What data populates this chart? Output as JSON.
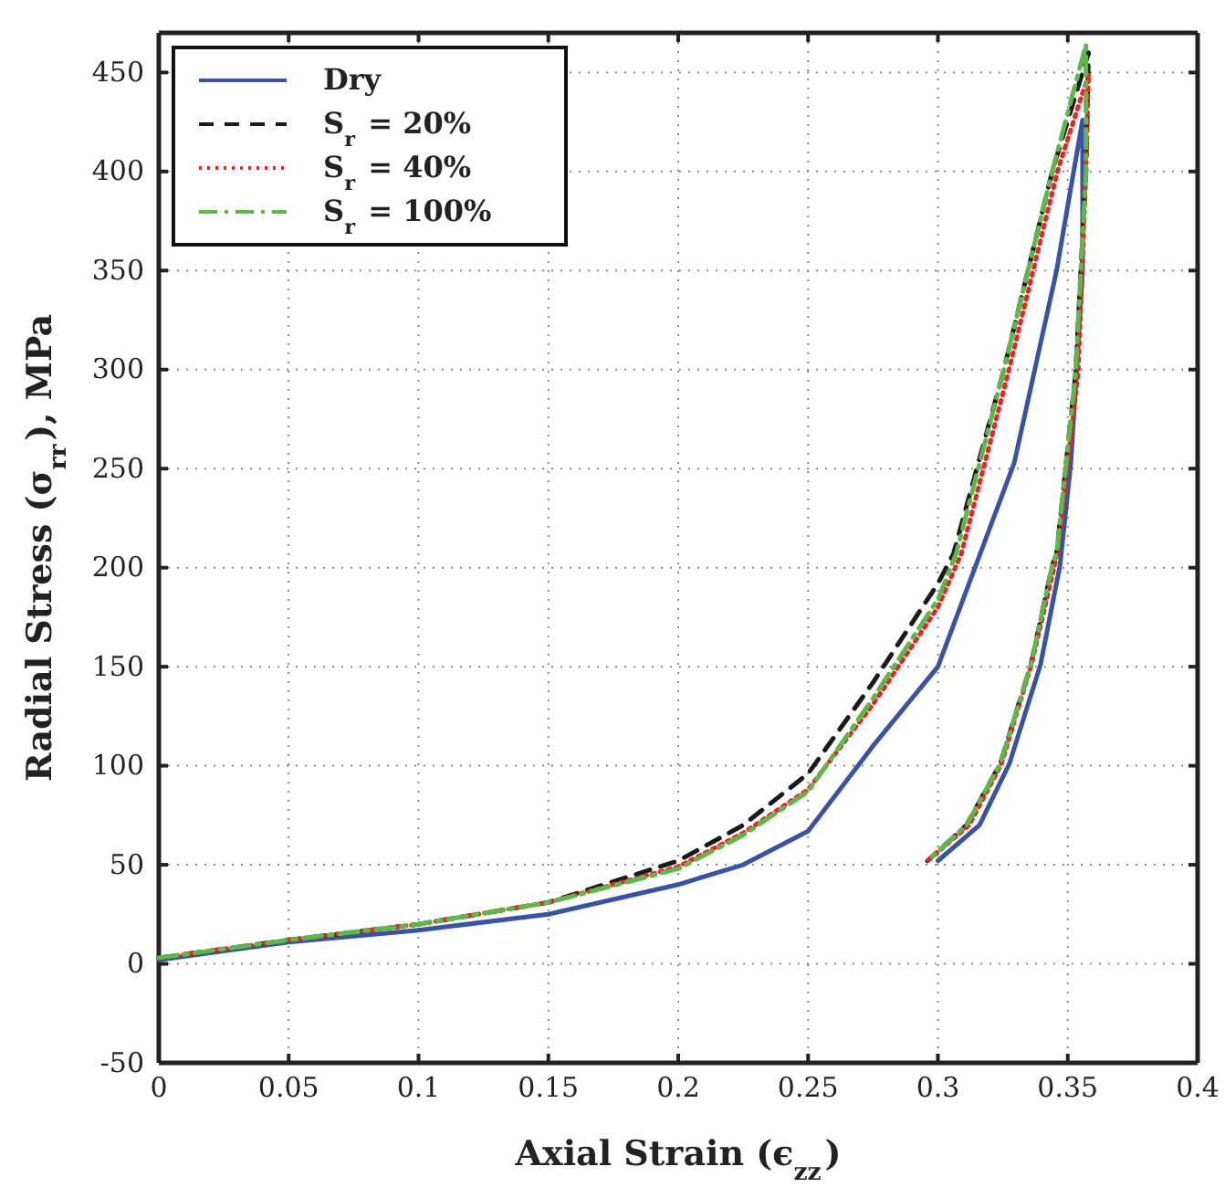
{
  "chart_data": {
    "type": "line",
    "xlabel": "Axial Strain (ϵ$_{zz}$)",
    "ylabel": "Radial Stress (σ$_{rr}$), MPa",
    "xlim": [
      0,
      0.4
    ],
    "ylim": [
      -50,
      470
    ],
    "xticks": [
      0,
      0.05,
      0.1,
      0.15,
      0.2,
      0.25,
      0.3,
      0.35,
      0.4
    ],
    "yticks": [
      -50,
      0,
      50,
      100,
      150,
      200,
      250,
      300,
      350,
      400,
      450
    ],
    "grid": true,
    "legend": "top left",
    "marker": "none",
    "series": [
      {
        "name": "Dry",
        "color": "#3953a4",
        "line_style": "solid",
        "x": [
          0,
          0.05,
          0.1,
          0.15,
          0.2,
          0.225,
          0.25,
          0.275,
          0.3,
          0.3294,
          0.3457,
          0.3557,
          0.3557,
          0.3512,
          0.347,
          0.3395,
          0.3275,
          0.316,
          0.3
        ],
        "values": [
          2,
          11,
          17,
          25,
          40,
          50,
          67,
          110,
          150,
          253,
          350,
          426,
          350,
          253,
          201,
          151,
          101,
          70,
          52
        ]
      },
      {
        "name": "S$_{r}$ = 20%",
        "color": "#1a1a1a",
        "line_style": "dashed",
        "x": [
          0,
          0.05,
          0.1,
          0.15,
          0.2,
          0.225,
          0.25,
          0.275,
          0.3,
          0.306,
          0.325,
          0.344,
          0.358,
          0.357,
          0.353,
          0.3457,
          0.344,
          0.3358,
          0.324,
          0.311,
          0.296
        ],
        "values": [
          3,
          12,
          20,
          31,
          52,
          70,
          96,
          142,
          192,
          207,
          298,
          400,
          460,
          400,
          298,
          207,
          201,
          151,
          101,
          70,
          52
        ]
      },
      {
        "name": "S$_{r}$ = 40%",
        "color": "#ee2222",
        "line_style": "dotted",
        "x": [
          0,
          0.05,
          0.1,
          0.15,
          0.2,
          0.225,
          0.25,
          0.275,
          0.3,
          0.309,
          0.327,
          0.346,
          0.358,
          0.357,
          0.354,
          0.346,
          0.336,
          0.3245,
          0.312,
          0.296
        ],
        "values": [
          3,
          12,
          20,
          31,
          49,
          66,
          88,
          131,
          180,
          207,
          298,
          400,
          449,
          400,
          298,
          207,
          151,
          101,
          70,
          52
        ]
      },
      {
        "name": "S$_{r}$ = 100%",
        "color": "#5cb849",
        "line_style": "dashdot",
        "x": [
          0,
          0.05,
          0.1,
          0.15,
          0.2,
          0.225,
          0.25,
          0.275,
          0.3,
          0.307,
          0.325,
          0.344,
          0.357,
          0.357,
          0.353,
          0.3457,
          0.344,
          0.3358,
          0.324,
          0.311,
          0.296
        ],
        "values": [
          3,
          12,
          20,
          31,
          48,
          65,
          87,
          134,
          184,
          207,
          298,
          400,
          464,
          400,
          298,
          207,
          201,
          151,
          101,
          70,
          52
        ]
      }
    ]
  }
}
